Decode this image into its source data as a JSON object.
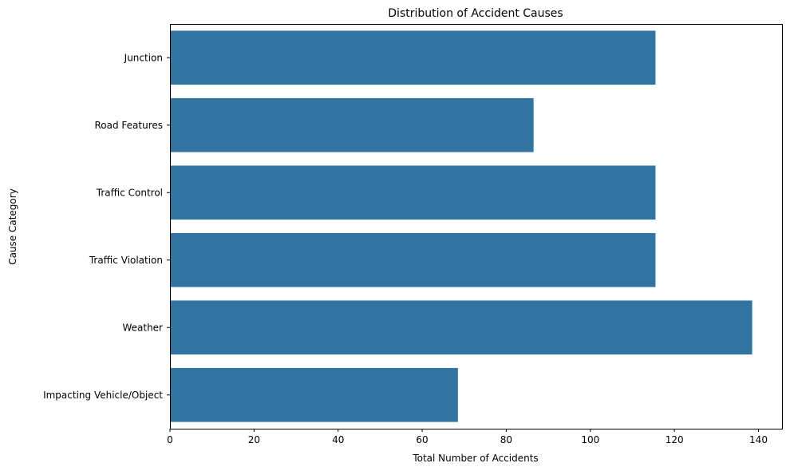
{
  "chart_data": {
    "type": "bar",
    "orientation": "horizontal",
    "title": "Distribution of Accident Causes",
    "xlabel": "Total Number of Accidents",
    "ylabel": "Cause Category",
    "categories": [
      "Junction",
      "Road Features",
      "Traffic Control",
      "Traffic Violation",
      "Weather",
      "Impacting Vehicle/Object"
    ],
    "values": [
      115.5,
      86.5,
      115.5,
      115.5,
      138.5,
      68.5
    ],
    "xlim": [
      0,
      145.6
    ],
    "xticks": [
      0,
      20,
      40,
      60,
      80,
      100,
      120,
      140
    ],
    "grid": false,
    "bar_color": "#3274a1"
  }
}
